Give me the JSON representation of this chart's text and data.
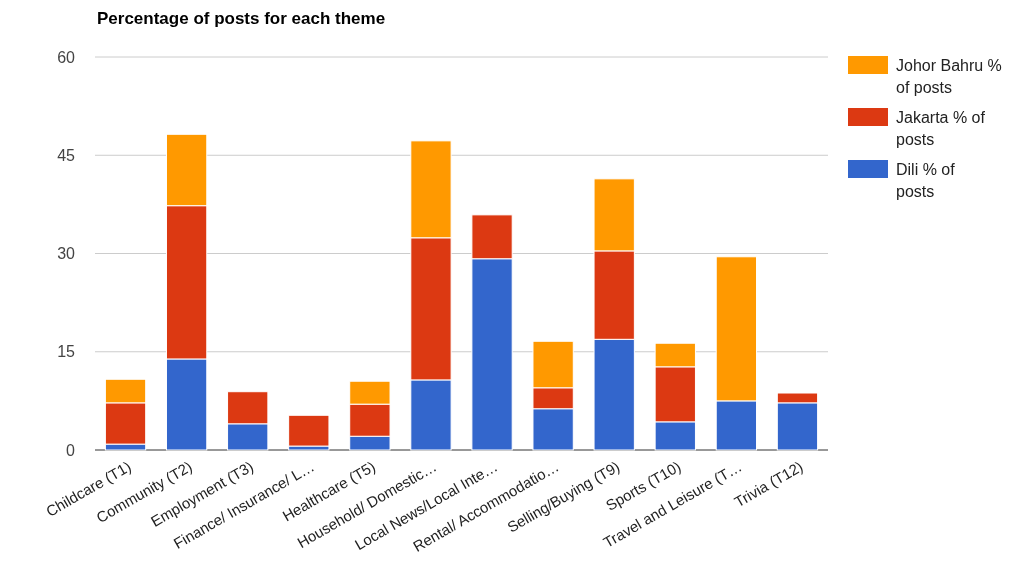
{
  "chart_data": {
    "type": "bar",
    "title": "Percentage of posts for each theme",
    "stacked": true,
    "grid": "y",
    "legend": "right",
    "categories": [
      "Childcare (T1)",
      "Community (T2)",
      "Employment (T3)",
      "Finance/ Insurance/ L…",
      "Healthcare (T5)",
      "Household/ Domestic…",
      "Local News/Local Inte…",
      "Rental/ Accommodatio…",
      "Selling/Buying (T9)",
      "Sports (T10)",
      "Travel and Leisure (T…",
      "Trivia (T12)"
    ],
    "ylim": [
      0,
      60
    ],
    "yticks": [
      0,
      15,
      30,
      45,
      60
    ],
    "series": [
      {
        "name": "Dili % of posts",
        "color": "#3366cc",
        "values": [
          0.9,
          13.9,
          4.0,
          0.6,
          2.1,
          10.7,
          29.2,
          6.3,
          16.9,
          4.3,
          7.5,
          7.2
        ]
      },
      {
        "name": "Jakarta % of posts",
        "color": "#dc3912",
        "values": [
          6.3,
          23.4,
          4.9,
          4.7,
          4.9,
          21.7,
          6.7,
          3.2,
          13.5,
          8.4,
          0,
          1.5
        ]
      },
      {
        "name": "Johor Bahru % of posts",
        "color": "#ff9900",
        "values": [
          3.6,
          10.9,
          0,
          0,
          3.5,
          14.8,
          0,
          7.1,
          11.0,
          3.6,
          22.0,
          0
        ]
      }
    ]
  }
}
